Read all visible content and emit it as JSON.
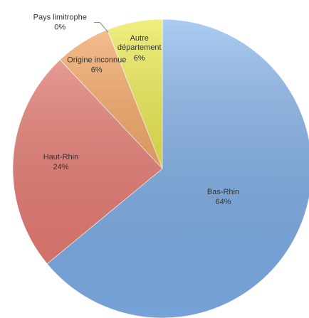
{
  "chart_data": {
    "type": "pie",
    "categories": [
      "Bas-Rhin",
      "Haut-Rhin",
      "Origine inconnue",
      "Pays limitrophe",
      "Autre département"
    ],
    "values": [
      64,
      24,
      6,
      0,
      6
    ],
    "value_labels": [
      "64%",
      "24%",
      "6%",
      "0%",
      "6%"
    ],
    "colors": [
      "#7fb0ea",
      "#ea7b72",
      "#f39e55",
      "#e6e63c",
      "#e6e63c"
    ]
  }
}
